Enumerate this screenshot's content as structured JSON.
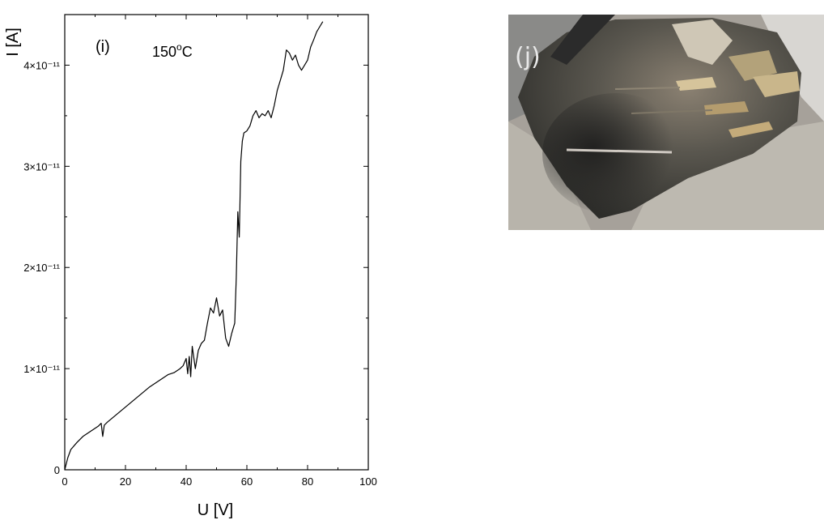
{
  "chart_data": {
    "type": "line",
    "panel_label": "(i)",
    "annotation": {
      "text_main": "150",
      "superscript": "o",
      "unit": "C"
    },
    "xlabel": "U [V]",
    "ylabel": "I [A]",
    "xlim": [
      0,
      100
    ],
    "ylim": [
      0,
      4.5e-11
    ],
    "x_ticks": [
      {
        "value": 0,
        "label": "0"
      },
      {
        "value": 20,
        "label": "20"
      },
      {
        "value": 40,
        "label": "40"
      },
      {
        "value": 60,
        "label": "60"
      },
      {
        "value": 80,
        "label": "80"
      },
      {
        "value": 100,
        "label": "100"
      }
    ],
    "y_ticks": [
      {
        "value": 0,
        "label": "0"
      },
      {
        "value": 1e-11,
        "label": "1×10⁻¹¹"
      },
      {
        "value": 2e-11,
        "label": "2×10⁻¹¹"
      },
      {
        "value": 3e-11,
        "label": "3×10⁻¹¹"
      },
      {
        "value": 4e-11,
        "label": "4×10⁻¹¹"
      }
    ],
    "series": [
      {
        "color": "#000000",
        "points": [
          [
            0,
            0.0
          ],
          [
            1,
            1.2e-12
          ],
          [
            2,
            2e-12
          ],
          [
            4,
            2.7e-12
          ],
          [
            6,
            3.3e-12
          ],
          [
            8,
            3.7e-12
          ],
          [
            10,
            4.1e-12
          ],
          [
            11,
            4.3e-12
          ],
          [
            12,
            4.6e-12
          ],
          [
            12.5,
            3.3e-12
          ],
          [
            13,
            4.4e-12
          ],
          [
            14,
            4.7e-12
          ],
          [
            16,
            5.2e-12
          ],
          [
            18,
            5.7e-12
          ],
          [
            20,
            6.2e-12
          ],
          [
            22,
            6.7e-12
          ],
          [
            24,
            7.2e-12
          ],
          [
            26,
            7.7e-12
          ],
          [
            28,
            8.2e-12
          ],
          [
            30,
            8.6e-12
          ],
          [
            32,
            9e-12
          ],
          [
            34,
            9.4e-12
          ],
          [
            36,
            9.6e-12
          ],
          [
            38,
            1e-11
          ],
          [
            39,
            1.03e-11
          ],
          [
            40,
            1.1e-11
          ],
          [
            40.5,
            9.5e-12
          ],
          [
            41,
            1.12e-11
          ],
          [
            41.5,
            9.2e-12
          ],
          [
            42,
            1.22e-11
          ],
          [
            43,
            1e-11
          ],
          [
            44,
            1.18e-11
          ],
          [
            45,
            1.25e-11
          ],
          [
            46,
            1.28e-11
          ],
          [
            47,
            1.45e-11
          ],
          [
            48,
            1.6e-11
          ],
          [
            49,
            1.55e-11
          ],
          [
            50,
            1.7e-11
          ],
          [
            51,
            1.52e-11
          ],
          [
            52,
            1.58e-11
          ],
          [
            53,
            1.3e-11
          ],
          [
            54,
            1.22e-11
          ],
          [
            55,
            1.35e-11
          ],
          [
            56,
            1.45e-11
          ],
          [
            56.5,
            1.9e-11
          ],
          [
            57,
            2.55e-11
          ],
          [
            57.5,
            2.3e-11
          ],
          [
            58,
            3.05e-11
          ],
          [
            58.5,
            3.25e-11
          ],
          [
            59,
            3.33e-11
          ],
          [
            60,
            3.35e-11
          ],
          [
            61,
            3.4e-11
          ],
          [
            62,
            3.5e-11
          ],
          [
            63,
            3.55e-11
          ],
          [
            64,
            3.48e-11
          ],
          [
            65,
            3.52e-11
          ],
          [
            66,
            3.5e-11
          ],
          [
            67,
            3.55e-11
          ],
          [
            68,
            3.48e-11
          ],
          [
            69,
            3.6e-11
          ],
          [
            70,
            3.75e-11
          ],
          [
            71,
            3.85e-11
          ],
          [
            72,
            3.95e-11
          ],
          [
            73,
            4.15e-11
          ],
          [
            74,
            4.12e-11
          ],
          [
            75,
            4.05e-11
          ],
          [
            76,
            4.1e-11
          ],
          [
            77,
            4e-11
          ],
          [
            78,
            3.95e-11
          ],
          [
            79,
            4e-11
          ],
          [
            80,
            4.05e-11
          ],
          [
            81,
            4.18e-11
          ],
          [
            82,
            4.25e-11
          ],
          [
            83,
            4.33e-11
          ],
          [
            84,
            4.38e-11
          ],
          [
            85,
            4.43e-11
          ]
        ]
      }
    ],
    "grid": false,
    "legend": "none"
  },
  "photo": {
    "label": "(j)"
  }
}
